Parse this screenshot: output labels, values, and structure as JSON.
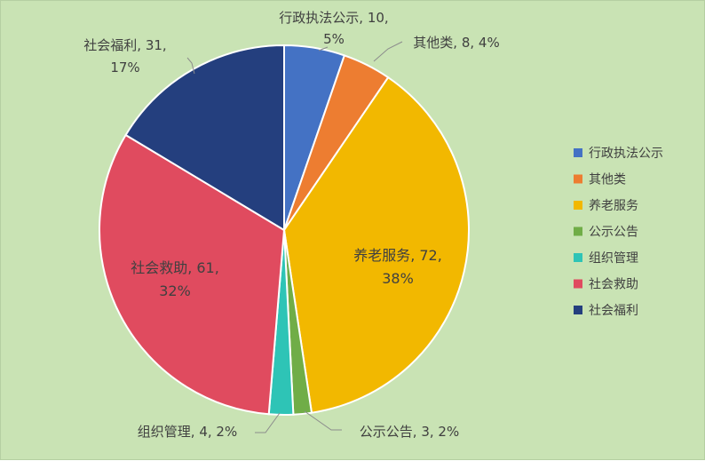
{
  "chart_data": {
    "type": "pie",
    "title": "",
    "legend_position": "right",
    "slices": [
      {
        "name": "行政执法公示",
        "value": 10,
        "percent": "5%",
        "color": "#4472c4"
      },
      {
        "name": "其他类",
        "value": 8,
        "percent": "4%",
        "color": "#ed7d31"
      },
      {
        "name": "养老服务",
        "value": 72,
        "percent": "38%",
        "color": "#f2b800"
      },
      {
        "name": "公示公告",
        "value": 3,
        "percent": "2%",
        "color": "#70ad47"
      },
      {
        "name": "组织管理",
        "value": 4,
        "percent": "2%",
        "color": "#2ec4b6"
      },
      {
        "name": "社会救助",
        "value": 61,
        "percent": "32%",
        "color": "#e04b5f"
      },
      {
        "name": "社会福利",
        "value": 31,
        "percent": "17%",
        "color": "#243f7e"
      }
    ]
  }
}
